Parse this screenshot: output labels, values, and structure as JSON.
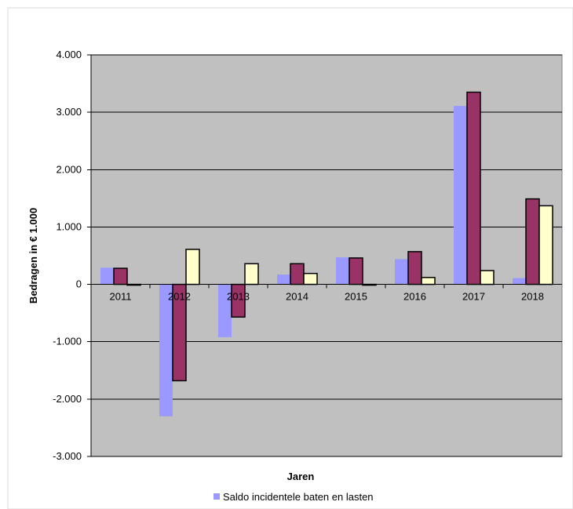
{
  "chart_data": {
    "type": "bar",
    "title": "",
    "xlabel": "Jaren",
    "ylabel": "Bedragen in € 1.000",
    "categories": [
      "2011",
      "2012",
      "2013",
      "2014",
      "2015",
      "2016",
      "2017",
      "2018"
    ],
    "ylim": [
      -3000,
      4000
    ],
    "yticks": [
      4000,
      3000,
      2000,
      1000,
      0,
      -1000,
      -2000,
      -3000
    ],
    "ytick_labels": [
      "4.000",
      "3.000",
      "2.000",
      "1.000",
      "0",
      "-1.000",
      "-2.000",
      "-3.000"
    ],
    "grid": true,
    "legend_position": "bottom",
    "series": [
      {
        "name": "Saldo incidentele baten en lasten",
        "color": "#9999ff",
        "border": "none",
        "values": [
          290,
          -2300,
          -920,
          170,
          470,
          440,
          3110,
          110
        ]
      },
      {
        "color": "#993366",
        "border": "#000000",
        "values": [
          280,
          -1680,
          -570,
          360,
          460,
          570,
          3350,
          1490
        ]
      },
      {
        "color": "#ffffcc",
        "border": "#000000",
        "values": [
          -10,
          610,
          360,
          190,
          -10,
          120,
          240,
          1370
        ]
      }
    ],
    "plot_background": "#c0c0c0",
    "grid_color": "#000000"
  }
}
